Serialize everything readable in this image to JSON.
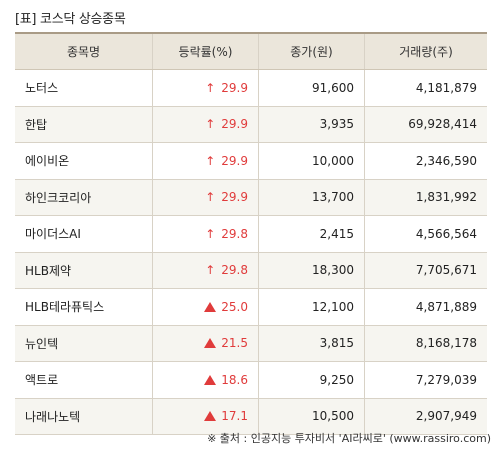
{
  "caption": "[표] 코스닥 상승종목",
  "headers": {
    "name": "종목명",
    "change": "등락률(%)",
    "close": "종가(원)",
    "volume": "거래량(주)"
  },
  "rows": [
    {
      "name": "노터스",
      "arrow": "↑",
      "change": "29.9",
      "close": "91,600",
      "volume": "4,181,879"
    },
    {
      "name": "한탑",
      "arrow": "↑",
      "change": "29.9",
      "close": "3,935",
      "volume": "69,928,414"
    },
    {
      "name": "에이비온",
      "arrow": "↑",
      "change": "29.9",
      "close": "10,000",
      "volume": "2,346,590"
    },
    {
      "name": "하인크코리아",
      "arrow": "↑",
      "change": "29.9",
      "close": "13,700",
      "volume": "1,831,992"
    },
    {
      "name": "마이더스AI",
      "arrow": "↑",
      "change": "29.8",
      "close": "2,415",
      "volume": "4,566,564"
    },
    {
      "name": "HLB제약",
      "arrow": "↑",
      "change": "29.8",
      "close": "18,300",
      "volume": "7,705,671"
    },
    {
      "name": "HLB테라퓨틱스",
      "arrow": "▲",
      "change": "25.0",
      "close": "12,100",
      "volume": "4,871,889"
    },
    {
      "name": "뉴인텍",
      "arrow": "▲",
      "change": "21.5",
      "close": "3,815",
      "volume": "8,168,178"
    },
    {
      "name": "액트로",
      "arrow": "▲",
      "change": "18.6",
      "close": "9,250",
      "volume": "7,279,039"
    },
    {
      "name": "나래나노텍",
      "arrow": "▲",
      "change": "17.1",
      "close": "10,500",
      "volume": "2,907,949"
    }
  ],
  "source": "※ 출처 : 인공지능 투자비서 'AI라씨로' (www.rassiro.com)",
  "colors": {
    "up": "#e03b3b",
    "header_bg": "#ebe6db",
    "alt_row_bg": "#f6f5f0"
  }
}
